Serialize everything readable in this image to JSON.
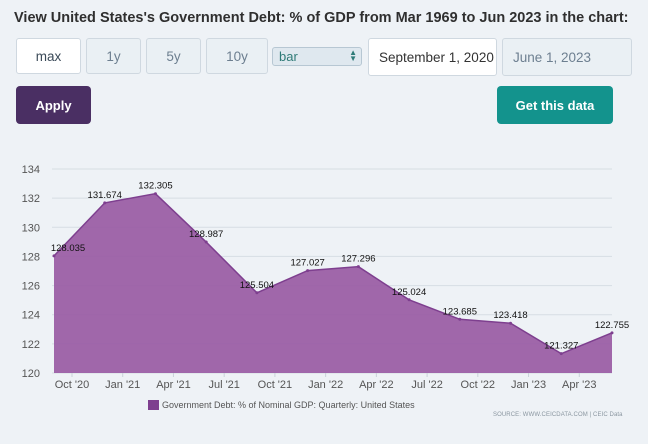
{
  "header": {
    "title": "View United States's Government Debt: % of GDP from Mar 1969 to Jun 2023 in the chart:"
  },
  "controls": {
    "ranges": [
      "max",
      "1y",
      "5y",
      "10y"
    ],
    "active_range": "max",
    "chart_type_select": "bar",
    "start_date": "September 1, 2020",
    "end_date": "June 1, 2023",
    "apply_label": "Apply",
    "get_data_label": "Get this data",
    "colors": {
      "apply": "#4a2f63",
      "get_data": "#13938d"
    }
  },
  "chart_data": {
    "type": "area",
    "color": "#9b5fa5",
    "line_color": "#7e3f8f",
    "x": [
      "2020-09",
      "2020-12",
      "2021-03",
      "2021-06",
      "2021-09",
      "2021-12",
      "2022-03",
      "2022-06",
      "2022-09",
      "2022-12",
      "2023-03",
      "2023-06"
    ],
    "values": [
      128.035,
      131.674,
      132.305,
      128.987,
      125.504,
      127.027,
      127.296,
      125.024,
      123.685,
      123.418,
      121.327,
      122.755
    ],
    "data_labels": [
      "128.035",
      "131.674",
      "132.305",
      "128.987",
      "125.504",
      "127.027",
      "127.296",
      "125.024",
      "123.685",
      "123.418",
      "121.327",
      "122.755"
    ],
    "x_tick_labels": [
      "Oct '20",
      "Jan '21",
      "Apr '21",
      "Jul '21",
      "Oct '21",
      "Jan '22",
      "Apr '22",
      "Jul '22",
      "Oct '22",
      "Jan '23",
      "Apr '23"
    ],
    "y_ticks": [
      120,
      122,
      124,
      126,
      128,
      130,
      132,
      134
    ],
    "ylim": [
      120,
      134
    ],
    "grid": true,
    "legend": [
      "Government Debt: % of Nominal GDP: Quarterly: United States"
    ],
    "legend_position": "bottom-center",
    "source": "SOURCE: WWW.CEICDATA.COM | CEIC Data"
  }
}
